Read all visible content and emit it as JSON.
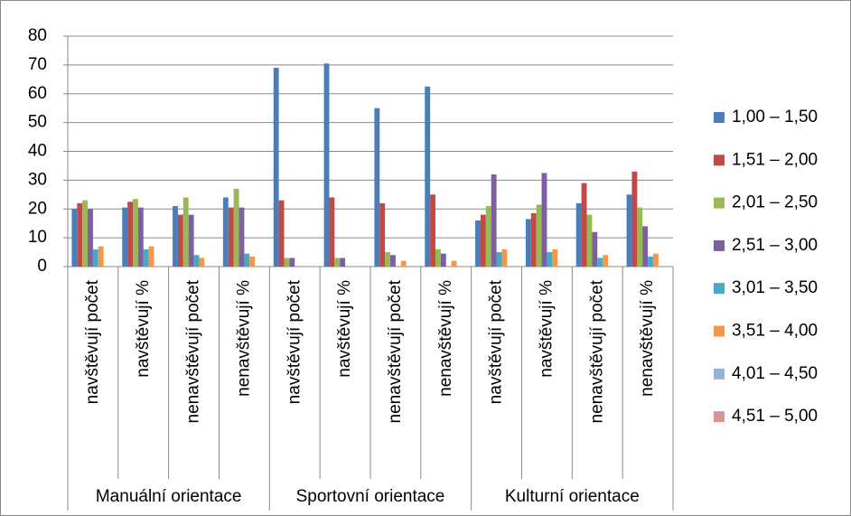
{
  "chart_data": {
    "type": "bar",
    "categories": [
      "navštěvují počet",
      "navštěvují %",
      "nenavštěvují počet",
      "nenavštěvují %",
      "navštěvují počet",
      "navštěvují %",
      "nenavštěvují počet",
      "nenavštěvují %",
      "navštěvují počet",
      "navštěvují %",
      "nenavštěvují počet",
      "nenavštěvují %"
    ],
    "groups": [
      "Manuální orientace",
      "Sportovní orientace",
      "Kulturní orientace"
    ],
    "series": [
      {
        "name": "1,00 – 1,50",
        "color": "#4A7EBB",
        "values": [
          20,
          20.5,
          21,
          24,
          69,
          70.5,
          55,
          62.5,
          16,
          16.5,
          22,
          25
        ]
      },
      {
        "name": "1,51 – 2,00",
        "color": "#BE4B48",
        "values": [
          22,
          22.5,
          18,
          20.5,
          23,
          24,
          22,
          25,
          18,
          18.5,
          29,
          33
        ]
      },
      {
        "name": "2,01 – 2,50",
        "color": "#98B954",
        "values": [
          23,
          23.5,
          24,
          27,
          3,
          3,
          5,
          6,
          21,
          21.5,
          18,
          20.5
        ]
      },
      {
        "name": "2,51 – 3,00",
        "color": "#7D60A0",
        "values": [
          20,
          20.5,
          18,
          20.5,
          3,
          3,
          4,
          4.5,
          32,
          32.5,
          12,
          14
        ]
      },
      {
        "name": "3,01 – 3,50",
        "color": "#46AAC5",
        "values": [
          6,
          6,
          4,
          4.5,
          0,
          0,
          0,
          0,
          5,
          5,
          3,
          3.5
        ]
      },
      {
        "name": "3,51 – 4,00",
        "color": "#F79646",
        "values": [
          7,
          7,
          3,
          3.5,
          0,
          0,
          2,
          2,
          6,
          6,
          4,
          4.5
        ]
      },
      {
        "name": "4,01 – 4,50",
        "color": "#95B3D7",
        "values": [
          0,
          0,
          0,
          0,
          0,
          0,
          0,
          0,
          0,
          0,
          0,
          0
        ]
      },
      {
        "name": "4,51 – 5,00",
        "color": "#D99694",
        "values": [
          0,
          0,
          0,
          0,
          0,
          0,
          0,
          0,
          0,
          0,
          0,
          0
        ]
      }
    ],
    "ylim": [
      0,
      80
    ],
    "yticks": [
      0,
      10,
      20,
      30,
      40,
      50,
      60,
      70,
      80
    ],
    "grid": true,
    "legend": "right"
  }
}
